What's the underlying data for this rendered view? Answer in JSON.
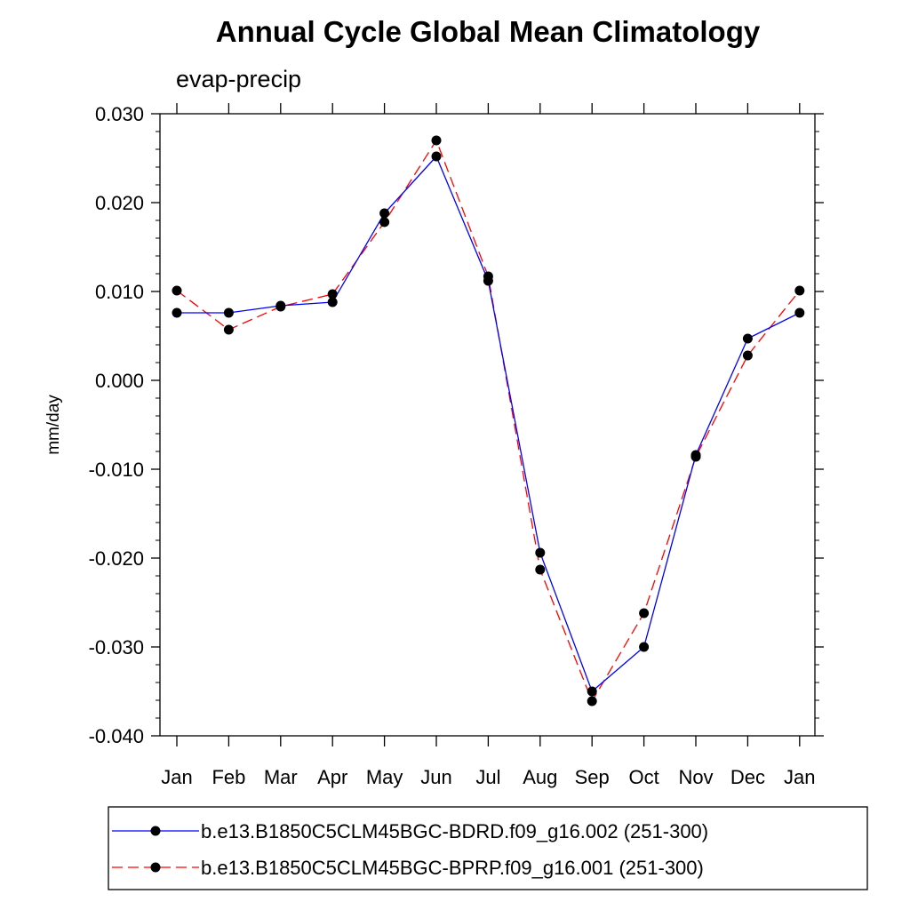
{
  "chart_data": {
    "type": "line",
    "title": "Annual Cycle Global Mean Climatology",
    "subtitle": "evap-precip",
    "ylabel": "mm/day",
    "xlabel": "",
    "categories": [
      "Jan",
      "Feb",
      "Mar",
      "Apr",
      "May",
      "Jun",
      "Jul",
      "Aug",
      "Sep",
      "Oct",
      "Nov",
      "Dec",
      "Jan"
    ],
    "ylim": [
      -0.04,
      0.03
    ],
    "yticks": [
      0.03,
      0.02,
      0.01,
      0.0,
      -0.01,
      -0.02,
      -0.03,
      -0.04
    ],
    "ytick_labels": [
      "0.030",
      "0.020",
      "0.010",
      "0.000",
      "-0.010",
      "-0.020",
      "-0.030",
      "-0.040"
    ],
    "grid": false,
    "legend_position": "bottom",
    "series": [
      {
        "name": "b.e13.B1850C5CLM45BGC-BDRD.f09_g16.002 (251-300)",
        "color": "#0000ff",
        "line_style": "solid",
        "marker": "filled-circle",
        "values": [
          0.0076,
          0.0076,
          0.0084,
          0.0088,
          0.0188,
          0.0252,
          0.0112,
          -0.0194,
          -0.035,
          -0.03,
          -0.0084,
          0.0047,
          0.0076
        ]
      },
      {
        "name": "b.e13.B1850C5CLM45BGC-BPRP.f09_g16.001 (251-300)",
        "color": "#ff0000",
        "line_style": "dashed",
        "marker": "filled-circle",
        "values": [
          0.0101,
          0.0057,
          0.0083,
          0.0097,
          0.0178,
          0.027,
          0.0117,
          -0.0213,
          -0.0361,
          -0.0262,
          -0.0086,
          0.0028,
          0.0101
        ]
      }
    ]
  }
}
